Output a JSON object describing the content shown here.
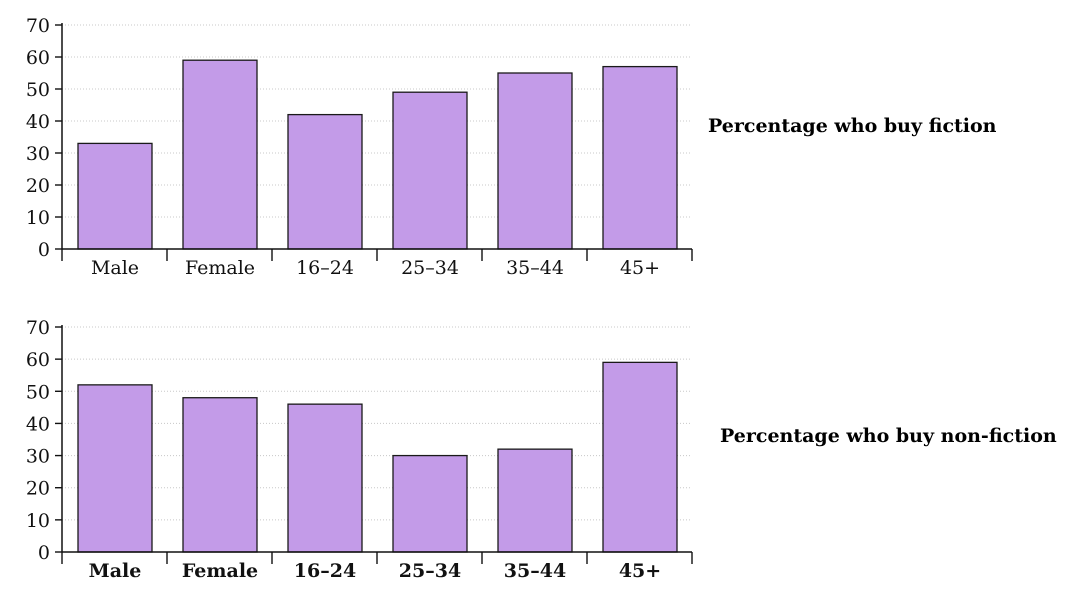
{
  "chart_data": [
    {
      "type": "bar",
      "title": "Percentage who buy fiction",
      "xlabel": "",
      "ylabel": "",
      "ylim": [
        0,
        70
      ],
      "yticks": [
        "0",
        "10",
        "20",
        "30",
        "40",
        "50",
        "60",
        "70"
      ],
      "grid": true,
      "categories": [
        "Male",
        "Female",
        "16–24",
        "25–34",
        "35–44",
        "45+"
      ],
      "values": [
        33,
        59,
        42,
        49,
        55,
        57
      ],
      "bar_color": "#c39be8",
      "bold_category_labels": false
    },
    {
      "type": "bar",
      "title": "Percentage who buy non-fiction",
      "xlabel": "",
      "ylabel": "",
      "ylim": [
        0,
        70
      ],
      "yticks": [
        "0",
        "10",
        "20",
        "30",
        "40",
        "50",
        "60",
        "70"
      ],
      "grid": true,
      "categories": [
        "Male",
        "Female",
        "16–24",
        "25–34",
        "35–44",
        "45+"
      ],
      "values": [
        52,
        48,
        46,
        30,
        32,
        59
      ],
      "bar_color": "#c39be8",
      "bold_category_labels": true
    }
  ]
}
